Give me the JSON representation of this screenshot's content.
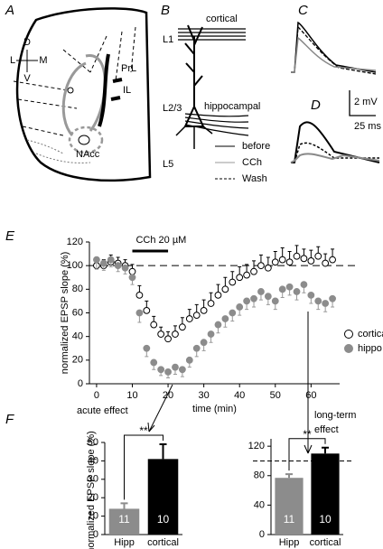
{
  "diagram": {
    "panel_labels": [
      "A",
      "B",
      "C",
      "D",
      "E",
      "F"
    ],
    "orientation": [
      "D",
      "L",
      "M",
      "V"
    ],
    "regions": [
      "PrL",
      "IL",
      "NAcc"
    ],
    "layers": [
      "L1",
      "L2/3",
      "L5"
    ],
    "inputs": [
      "cortical",
      "hippocampal"
    ],
    "trace_legend": [
      "before",
      "CCh",
      "Wash"
    ],
    "scale_bar": [
      "2 mV",
      "25 ms"
    ]
  },
  "chart_data": [
    {
      "type": "scatter",
      "ylabel": "normalized EPSP slope (%)",
      "xlabel": "time (min)",
      "x": [
        0,
        2,
        4,
        6,
        8,
        10,
        12,
        14,
        16,
        18,
        20,
        22,
        24,
        26,
        28,
        30,
        32,
        34,
        36,
        38,
        40,
        42,
        44,
        46,
        48,
        50,
        52,
        54,
        56,
        58,
        60,
        62,
        64,
        66
      ],
      "series": [
        {
          "name": "cortical",
          "color": "#ffffff",
          "values": [
            100,
            100,
            103,
            102,
            100,
            95,
            75,
            62,
            50,
            42,
            38,
            42,
            48,
            55,
            58,
            62,
            68,
            75,
            80,
            86,
            90,
            92,
            95,
            100,
            98,
            103,
            105,
            103,
            108,
            106,
            104,
            108,
            102,
            105
          ],
          "errors": [
            6,
            5,
            6,
            5,
            5,
            6,
            8,
            8,
            7,
            6,
            6,
            7,
            8,
            8,
            9,
            9,
            9,
            9,
            10,
            9,
            9,
            9,
            9,
            9,
            9,
            9,
            10,
            9,
            9,
            8,
            9,
            8,
            8,
            9
          ]
        },
        {
          "name": "hippo",
          "color": "#8c8c8c",
          "values": [
            105,
            102,
            105,
            100,
            98,
            90,
            60,
            30,
            18,
            12,
            10,
            14,
            12,
            20,
            30,
            35,
            42,
            50,
            55,
            60,
            65,
            70,
            72,
            78,
            74,
            70,
            80,
            82,
            78,
            84,
            75,
            70,
            68,
            72
          ],
          "errors": [
            8,
            6,
            6,
            5,
            5,
            6,
            8,
            7,
            6,
            5,
            5,
            6,
            6,
            6,
            7,
            7,
            7,
            7,
            7,
            7,
            7,
            7,
            7,
            7,
            7,
            7,
            7,
            7,
            7,
            7,
            7,
            7,
            7,
            7
          ]
        }
      ],
      "xlim": [
        -2,
        68
      ],
      "ylim": [
        0,
        120
      ],
      "xticks": [
        0,
        10,
        20,
        30,
        40,
        50,
        60
      ],
      "yticks": [
        0,
        20,
        40,
        60,
        80,
        100,
        120
      ],
      "hline": 100,
      "drug": {
        "label": "CCh 20 µM",
        "start": 10,
        "end": 20
      }
    },
    {
      "type": "bar",
      "ylabel": "normalized EPSP slope (%)",
      "annotation": [
        "acute effect"
      ],
      "categories": [
        "Hipp",
        "cortical"
      ],
      "values": [
        14,
        41
      ],
      "errors": [
        3,
        8
      ],
      "colors": [
        "#8c8c8c",
        "#000000"
      ],
      "n_labels": [
        "11",
        "10"
      ],
      "significance": "**",
      "ylim": [
        0,
        50
      ],
      "yticks": [
        0,
        10,
        20,
        30,
        40,
        50
      ]
    },
    {
      "type": "bar",
      "annotation": [
        "long-term",
        "effect"
      ],
      "categories": [
        "Hipp",
        "cortical"
      ],
      "values": [
        77,
        110
      ],
      "errors": [
        5,
        8
      ],
      "colors": [
        "#8c8c8c",
        "#000000"
      ],
      "n_labels": [
        "11",
        "10"
      ],
      "significance": "**",
      "ylim": [
        0,
        130
      ],
      "yticks": [
        0,
        40,
        80,
        120
      ],
      "hline": 100
    }
  ]
}
